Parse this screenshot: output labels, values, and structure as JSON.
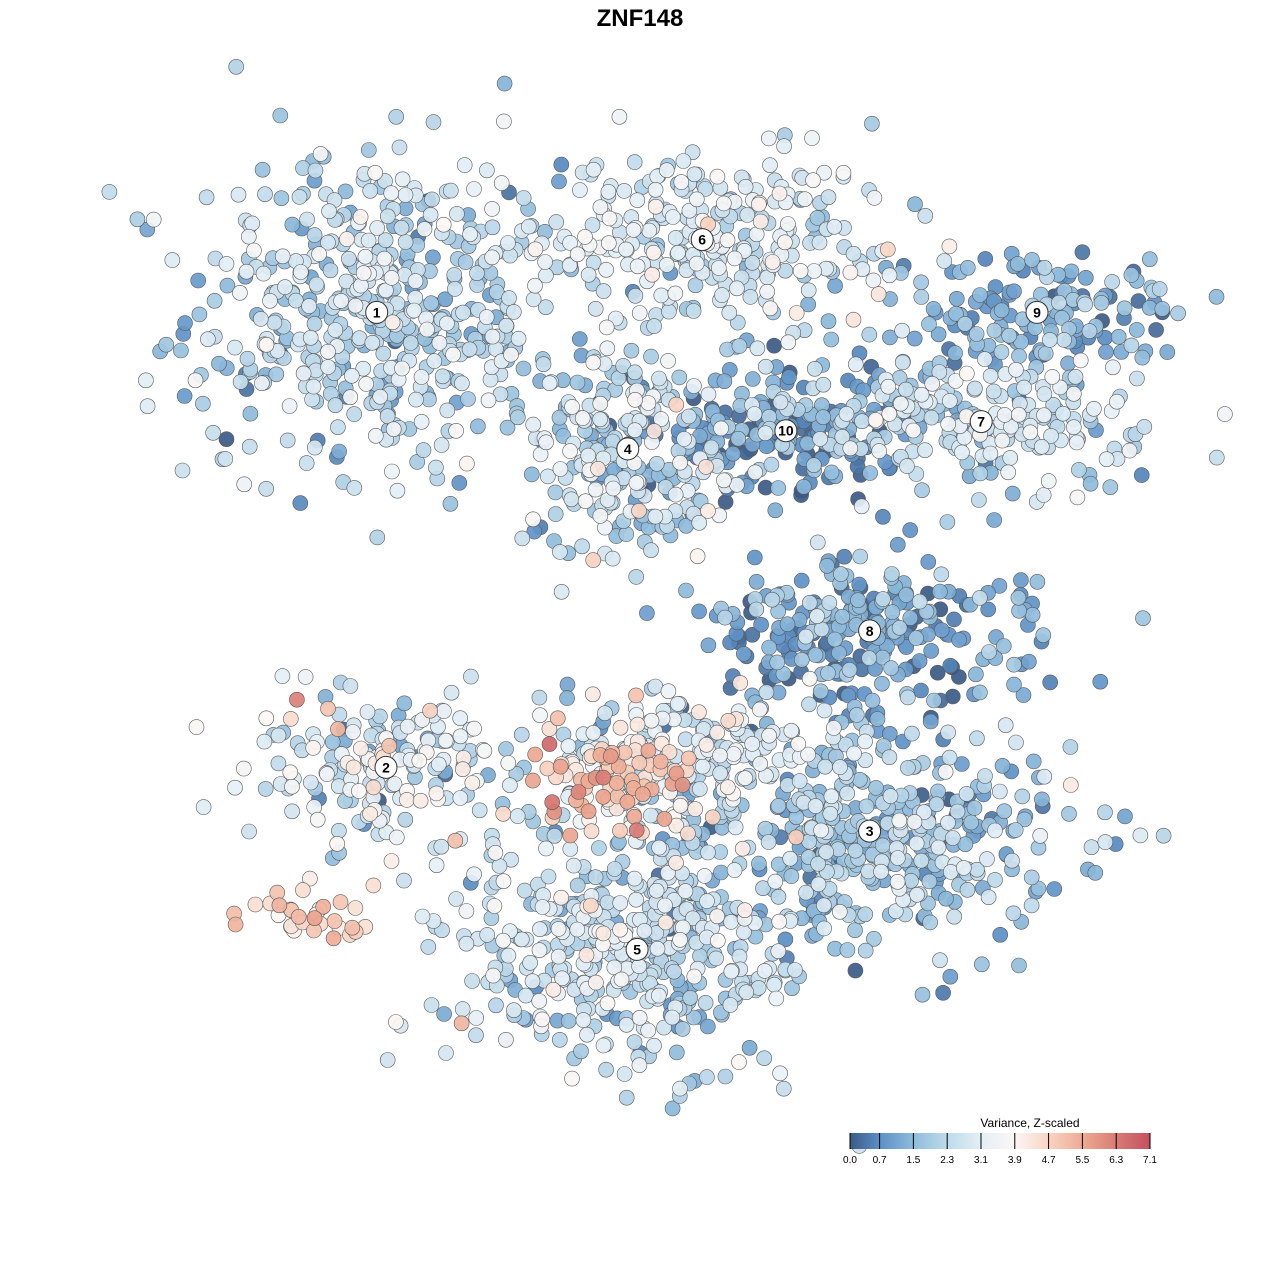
{
  "chart_data": {
    "type": "scatter",
    "title": "ZNF148",
    "xlabel": "",
    "ylabel": "",
    "grid": false,
    "axes_visible": false,
    "color_scale": {
      "title": "Variance, Z-scaled",
      "min": 0.0,
      "max": 7.1,
      "ticks": [
        "0.0",
        "0.7",
        "1.5",
        "2.3",
        "3.1",
        "3.9",
        "4.7",
        "5.5",
        "6.3",
        "7.1"
      ],
      "tick_values": [
        0.0,
        0.7,
        1.5,
        2.3,
        3.1,
        3.9,
        4.7,
        5.5,
        6.3,
        7.1
      ],
      "stops": [
        {
          "value": 0.0,
          "color": "#3a5a85"
        },
        {
          "value": 0.7,
          "color": "#5b8fc6"
        },
        {
          "value": 1.5,
          "color": "#8fbcdc"
        },
        {
          "value": 2.3,
          "color": "#bfdaea"
        },
        {
          "value": 3.1,
          "color": "#e4eff6"
        },
        {
          "value": 3.9,
          "color": "#fbf7f5"
        },
        {
          "value": 4.7,
          "color": "#f8d5c4"
        },
        {
          "value": 5.5,
          "color": "#eeaa92"
        },
        {
          "value": 6.3,
          "color": "#d97b75"
        },
        {
          "value": 7.1,
          "color": "#c45060"
        }
      ],
      "position": "bottom-right"
    },
    "x_range": [
      -50,
      50
    ],
    "y_range": [
      -50,
      50
    ],
    "clusters": [
      {
        "label": "1",
        "x": -31,
        "y": 36,
        "sx": 10,
        "sy": 9,
        "n": 520,
        "mean": 2.2,
        "sd": 0.75
      },
      {
        "label": "2",
        "x": -30,
        "y": -14,
        "sx": 8,
        "sy": 4.5,
        "n": 190,
        "mean": 2.8,
        "sd": 1.0
      },
      {
        "label": "3",
        "x": 22,
        "y": -21,
        "sx": 11,
        "sy": 6,
        "n": 450,
        "mean": 1.8,
        "sd": 0.75
      },
      {
        "label": "4",
        "x": -4,
        "y": 21,
        "sx": 6,
        "sy": 6,
        "n": 240,
        "mean": 2.2,
        "sd": 0.9
      },
      {
        "label": "5",
        "x": -3,
        "y": -34,
        "sx": 10,
        "sy": 7,
        "n": 480,
        "mean": 2.4,
        "sd": 0.8
      },
      {
        "label": "6",
        "x": 4,
        "y": 44,
        "sx": 10,
        "sy": 4.5,
        "n": 300,
        "mean": 2.7,
        "sd": 0.7
      },
      {
        "label": "7",
        "x": 34,
        "y": 24,
        "sx": 10,
        "sy": 3.5,
        "n": 220,
        "mean": 2.5,
        "sd": 0.7
      },
      {
        "label": "8",
        "x": 22,
        "y": 1,
        "sx": 9,
        "sy": 4,
        "n": 260,
        "mean": 0.9,
        "sd": 0.7
      },
      {
        "label": "9",
        "x": 40,
        "y": 36,
        "sx": 8,
        "sy": 3.5,
        "n": 150,
        "mean": 1.3,
        "sd": 0.6
      },
      {
        "label": "10",
        "x": 13,
        "y": 23,
        "sx": 7,
        "sy": 4,
        "n": 190,
        "mean": 0.9,
        "sd": 0.7
      },
      {
        "label": "",
        "x": -6,
        "y": -16,
        "sx": 4,
        "sy": 3,
        "n": 90,
        "mean": 4.9,
        "sd": 0.8
      },
      {
        "label": "",
        "x": -38,
        "y": -30,
        "sx": 3.5,
        "sy": 1.8,
        "n": 35,
        "mean": 4.6,
        "sd": 0.6
      },
      {
        "label": "",
        "x": 2,
        "y": -12,
        "sx": 8,
        "sy": 3,
        "n": 180,
        "mean": 2.9,
        "sd": 0.9
      }
    ]
  }
}
